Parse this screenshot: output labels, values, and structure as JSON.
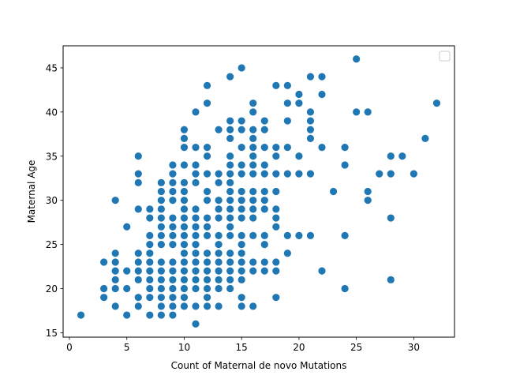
{
  "chart_data": {
    "type": "scatter",
    "title": "",
    "xlabel": "Count of Maternal de novo Mutations",
    "ylabel": "Maternal Age",
    "xlim": [
      -0.55,
      33.55
    ],
    "ylim": [
      14.5,
      47.5
    ],
    "xticks": [
      0,
      5,
      10,
      15,
      20,
      25,
      30
    ],
    "yticks": [
      15,
      20,
      25,
      30,
      35,
      40,
      45
    ],
    "grid": false,
    "legend": {
      "placement": "upper-right",
      "entries": []
    },
    "point_color": "#1f77b4",
    "points": [
      [
        1,
        17
      ],
      [
        3,
        23
      ],
      [
        3,
        20
      ],
      [
        3,
        19
      ],
      [
        4,
        30
      ],
      [
        4,
        24
      ],
      [
        4,
        23
      ],
      [
        4,
        22
      ],
      [
        4,
        21
      ],
      [
        4,
        20
      ],
      [
        4,
        18
      ],
      [
        5,
        27
      ],
      [
        5,
        22
      ],
      [
        5,
        20
      ],
      [
        5,
        17
      ],
      [
        6,
        35
      ],
      [
        6,
        33
      ],
      [
        6,
        32
      ],
      [
        6,
        29
      ],
      [
        6,
        24
      ],
      [
        6,
        23
      ],
      [
        6,
        22
      ],
      [
        6,
        21
      ],
      [
        6,
        19
      ],
      [
        6,
        18
      ],
      [
        7,
        29
      ],
      [
        7,
        28
      ],
      [
        7,
        26
      ],
      [
        7,
        25
      ],
      [
        7,
        24
      ],
      [
        7,
        23
      ],
      [
        7,
        22
      ],
      [
        7,
        21
      ],
      [
        7,
        20
      ],
      [
        7,
        19
      ],
      [
        7,
        17
      ],
      [
        8,
        32
      ],
      [
        8,
        31
      ],
      [
        8,
        30
      ],
      [
        8,
        29
      ],
      [
        8,
        28
      ],
      [
        8,
        27
      ],
      [
        8,
        26
      ],
      [
        8,
        25
      ],
      [
        8,
        23
      ],
      [
        8,
        22
      ],
      [
        8,
        21
      ],
      [
        8,
        20
      ],
      [
        8,
        19
      ],
      [
        8,
        18
      ],
      [
        8,
        17
      ],
      [
        9,
        34
      ],
      [
        9,
        33
      ],
      [
        9,
        32
      ],
      [
        9,
        31
      ],
      [
        9,
        30
      ],
      [
        9,
        28
      ],
      [
        9,
        27
      ],
      [
        9,
        26
      ],
      [
        9,
        25
      ],
      [
        9,
        23
      ],
      [
        9,
        22
      ],
      [
        9,
        21
      ],
      [
        9,
        20
      ],
      [
        9,
        19
      ],
      [
        9,
        18
      ],
      [
        9,
        17
      ],
      [
        10,
        38
      ],
      [
        10,
        37
      ],
      [
        10,
        36
      ],
      [
        10,
        34
      ],
      [
        10,
        32
      ],
      [
        10,
        31
      ],
      [
        10,
        30
      ],
      [
        10,
        29
      ],
      [
        10,
        28
      ],
      [
        10,
        27
      ],
      [
        10,
        26
      ],
      [
        10,
        25
      ],
      [
        10,
        24
      ],
      [
        10,
        23
      ],
      [
        10,
        22
      ],
      [
        10,
        21
      ],
      [
        10,
        20
      ],
      [
        10,
        19
      ],
      [
        10,
        18
      ],
      [
        11,
        40
      ],
      [
        11,
        36
      ],
      [
        11,
        34
      ],
      [
        11,
        33
      ],
      [
        11,
        32
      ],
      [
        11,
        29
      ],
      [
        11,
        28
      ],
      [
        11,
        27
      ],
      [
        11,
        26
      ],
      [
        11,
        25
      ],
      [
        11,
        24
      ],
      [
        11,
        23
      ],
      [
        11,
        22
      ],
      [
        11,
        21
      ],
      [
        11,
        20
      ],
      [
        11,
        18
      ],
      [
        11,
        16
      ],
      [
        12,
        43
      ],
      [
        12,
        41
      ],
      [
        12,
        36
      ],
      [
        12,
        35
      ],
      [
        12,
        33
      ],
      [
        12,
        31
      ],
      [
        12,
        30
      ],
      [
        12,
        28
      ],
      [
        12,
        27
      ],
      [
        12,
        26
      ],
      [
        12,
        24
      ],
      [
        12,
        23
      ],
      [
        12,
        22
      ],
      [
        12,
        21
      ],
      [
        12,
        20
      ],
      [
        12,
        19
      ],
      [
        12,
        18
      ],
      [
        13,
        38
      ],
      [
        13,
        33
      ],
      [
        13,
        32
      ],
      [
        13,
        30
      ],
      [
        13,
        29
      ],
      [
        13,
        28
      ],
      [
        13,
        26
      ],
      [
        13,
        25
      ],
      [
        13,
        24
      ],
      [
        13,
        23
      ],
      [
        13,
        22
      ],
      [
        13,
        21
      ],
      [
        13,
        20
      ],
      [
        13,
        18
      ],
      [
        14,
        44
      ],
      [
        14,
        39
      ],
      [
        14,
        38
      ],
      [
        14,
        37
      ],
      [
        14,
        35
      ],
      [
        14,
        34
      ],
      [
        14,
        33
      ],
      [
        14,
        32
      ],
      [
        14,
        31
      ],
      [
        14,
        30
      ],
      [
        14,
        29
      ],
      [
        14,
        28
      ],
      [
        14,
        27
      ],
      [
        14,
        26
      ],
      [
        14,
        24
      ],
      [
        14,
        23
      ],
      [
        14,
        22
      ],
      [
        14,
        21
      ],
      [
        14,
        20
      ],
      [
        15,
        45
      ],
      [
        15,
        39
      ],
      [
        15,
        38
      ],
      [
        15,
        36
      ],
      [
        15,
        34
      ],
      [
        15,
        33
      ],
      [
        15,
        31
      ],
      [
        15,
        30
      ],
      [
        15,
        29
      ],
      [
        15,
        28
      ],
      [
        15,
        26
      ],
      [
        15,
        25
      ],
      [
        15,
        24
      ],
      [
        15,
        23
      ],
      [
        15,
        22
      ],
      [
        15,
        21
      ],
      [
        15,
        19
      ],
      [
        15,
        18
      ],
      [
        16,
        41
      ],
      [
        16,
        40
      ],
      [
        16,
        38
      ],
      [
        16,
        37
      ],
      [
        16,
        36
      ],
      [
        16,
        35
      ],
      [
        16,
        34
      ],
      [
        16,
        33
      ],
      [
        16,
        31
      ],
      [
        16,
        30
      ],
      [
        16,
        29
      ],
      [
        16,
        28
      ],
      [
        16,
        26
      ],
      [
        16,
        23
      ],
      [
        16,
        22
      ],
      [
        16,
        18
      ],
      [
        17,
        39
      ],
      [
        17,
        38
      ],
      [
        17,
        36
      ],
      [
        17,
        34
      ],
      [
        17,
        33
      ],
      [
        17,
        31
      ],
      [
        17,
        30
      ],
      [
        17,
        29
      ],
      [
        17,
        26
      ],
      [
        17,
        25
      ],
      [
        17,
        23
      ],
      [
        17,
        22
      ],
      [
        18,
        43
      ],
      [
        18,
        36
      ],
      [
        18,
        35
      ],
      [
        18,
        33
      ],
      [
        18,
        31
      ],
      [
        18,
        29
      ],
      [
        18,
        28
      ],
      [
        18,
        27
      ],
      [
        18,
        23
      ],
      [
        18,
        22
      ],
      [
        18,
        19
      ],
      [
        19,
        43
      ],
      [
        19,
        41
      ],
      [
        19,
        39
      ],
      [
        19,
        36
      ],
      [
        19,
        33
      ],
      [
        19,
        26
      ],
      [
        19,
        24
      ],
      [
        20,
        42
      ],
      [
        20,
        41
      ],
      [
        20,
        35
      ],
      [
        20,
        33
      ],
      [
        20,
        26
      ],
      [
        21,
        44
      ],
      [
        21,
        40
      ],
      [
        21,
        39
      ],
      [
        21,
        38
      ],
      [
        21,
        37
      ],
      [
        21,
        33
      ],
      [
        21,
        26
      ],
      [
        22,
        44
      ],
      [
        22,
        42
      ],
      [
        22,
        36
      ],
      [
        22,
        22
      ],
      [
        23,
        31
      ],
      [
        24,
        36
      ],
      [
        24,
        34
      ],
      [
        24,
        26
      ],
      [
        24,
        20
      ],
      [
        25,
        46
      ],
      [
        25,
        40
      ],
      [
        26,
        40
      ],
      [
        26,
        31
      ],
      [
        26,
        30
      ],
      [
        27,
        33
      ],
      [
        28,
        35
      ],
      [
        28,
        33
      ],
      [
        28,
        28
      ],
      [
        28,
        21
      ],
      [
        29,
        35
      ],
      [
        30,
        33
      ],
      [
        31,
        37
      ],
      [
        32,
        41
      ]
    ]
  }
}
